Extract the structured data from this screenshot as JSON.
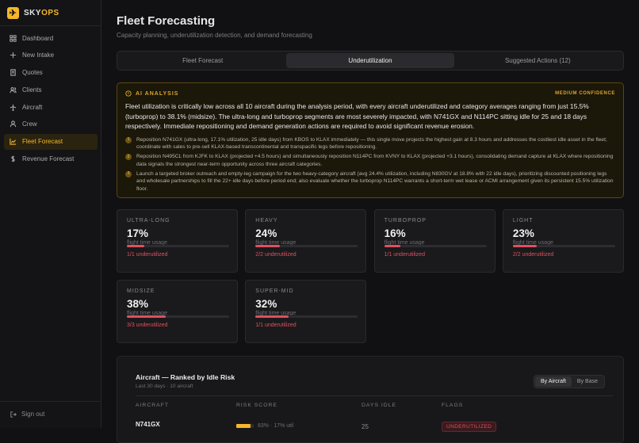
{
  "sidebar": {
    "brand_primary": "SKY",
    "brand_accent": "OPS",
    "nav": [
      {
        "label": "Dashboard",
        "active": false
      },
      {
        "label": "New Intake",
        "active": false
      },
      {
        "label": "Quotes",
        "active": false
      },
      {
        "label": "Clients",
        "active": false
      },
      {
        "label": "Aircraft",
        "active": false
      },
      {
        "label": "Crew",
        "active": false
      },
      {
        "label": "Fleet Forecast",
        "active": true
      },
      {
        "label": "Revenue Forecast",
        "active": false
      }
    ],
    "sign_out": "Sign out"
  },
  "header": {
    "title": "Fleet Forecasting",
    "subtitle": "Capacity planning, underutilization detection, and demand forecasting"
  },
  "tabs": [
    {
      "label": "Fleet Forecast",
      "active": false
    },
    {
      "label": "Underutilization",
      "active": true
    },
    {
      "label": "Suggested Actions (12)",
      "active": false
    }
  ],
  "analysis": {
    "heading": "AI ANALYSIS",
    "confidence": "MEDIUM CONFIDENCE",
    "summary": "Fleet utilization is critically low across all 10 aircraft during the analysis period, with every aircraft underutilized and category averages ranging from just 15.5% (turboprop) to 38.1% (midsize). The ultra-long and turboprop segments are most severely impacted, with N741GX and N114PC sitting idle for 25 and 18 days respectively. Immediate repositioning and demand generation actions are required to avoid significant revenue erosion.",
    "actions": [
      {
        "n": "1",
        "text": "Reposition N741GX (ultra-long, 17.1% utilization, 25 idle days) from KBOS to KLAX immediately — this single move projects the highest gain at 8.3 hours and addresses the costliest idle asset in the fleet; coordinate with sales to pre-sell KLAX-based transcontinental and transpacific legs before repositioning."
      },
      {
        "n": "2",
        "text": "Reposition N495CL from KJFK to KLAX (projected +4.5 hours) and simultaneously reposition N114PC from KVNY to KLAX (projected +3.1 hours), consolidating demand capture at KLAX where repositioning data signals the strongest near-term opportunity across three aircraft categories."
      },
      {
        "n": "3",
        "text": "Launch a targeted broker outreach and empty-leg campaign for the two heavy-category aircraft (avg 24.4% utilization, including N830GV at 18.8% with 22 idle days), prioritizing discounted positioning legs and wholesale partnerships to fill the 22+ idle days before period end; also evaluate whether the turboprop N114PC warrants a short-term wet lease or ACMI arrangement given its persistent 15.5% utilization floor."
      }
    ]
  },
  "categories": [
    {
      "label": "ULTRA-LONG",
      "usage": 17,
      "usage_label": "17%",
      "caption": "flight time usage",
      "note": "1/1 underutilized"
    },
    {
      "label": "HEAVY",
      "usage": 24,
      "usage_label": "24%",
      "caption": "flight time usage",
      "note": "2/2 underutilized"
    },
    {
      "label": "TURBOPROP",
      "usage": 16,
      "usage_label": "16%",
      "caption": "flight time usage",
      "note": "1/1 underutilized"
    },
    {
      "label": "LIGHT",
      "usage": 23,
      "usage_label": "23%",
      "caption": "flight time usage",
      "note": "2/2 underutilized"
    },
    {
      "label": "MIDSIZE",
      "usage": 38,
      "usage_label": "38%",
      "caption": "flight time usage",
      "note": "3/3 underutilized"
    },
    {
      "label": "SUPER-MID",
      "usage": 32,
      "usage_label": "32%",
      "caption": "flight time usage",
      "note": "1/1 underutilized"
    }
  ],
  "ranking": {
    "title": "Aircraft — Ranked by Idle Risk",
    "subtitle": "Last 30 days · 10 aircraft",
    "views": [
      {
        "label": "By Aircraft",
        "active": true
      },
      {
        "label": "By Base",
        "active": false
      }
    ],
    "columns": [
      "AIRCRAFT",
      "RISK SCORE",
      "DAYS IDLE",
      "FLAGS"
    ],
    "rows": [
      {
        "aircraft": "N741GX",
        "risk": 83,
        "risk_label": "83%",
        "utilization": "17% util",
        "days_idle": "25",
        "flag": "UNDERUTILIZED"
      }
    ]
  }
}
